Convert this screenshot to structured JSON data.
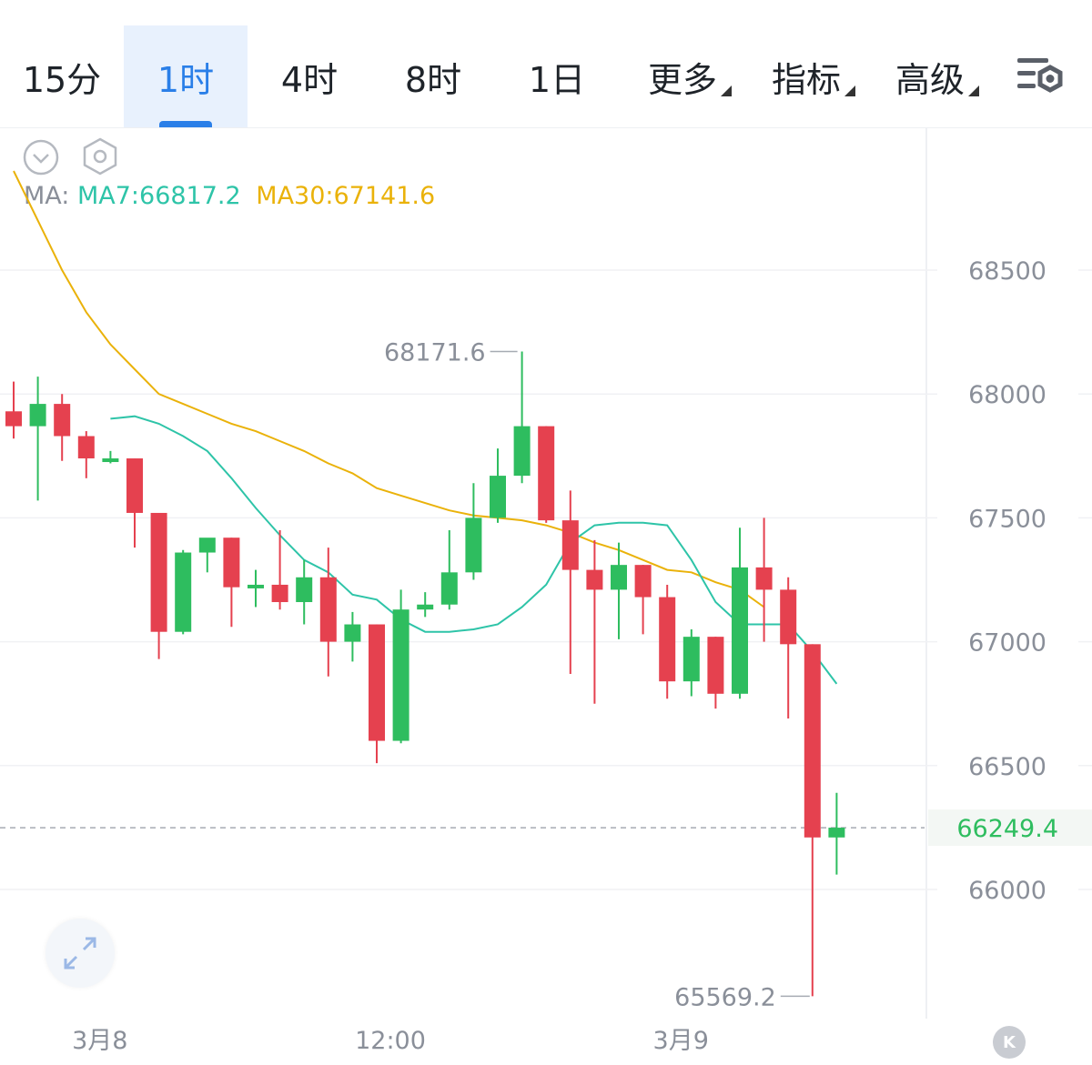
{
  "tabs": [
    {
      "label": "15分",
      "active": false,
      "dropdown": false
    },
    {
      "label": "1时",
      "active": true,
      "dropdown": false
    },
    {
      "label": "4时",
      "active": false,
      "dropdown": false
    },
    {
      "label": "8时",
      "active": false,
      "dropdown": false
    },
    {
      "label": "1日",
      "active": false,
      "dropdown": false
    },
    {
      "label": "更多",
      "active": false,
      "dropdown": true
    },
    {
      "label": "指标",
      "active": false,
      "dropdown": true
    },
    {
      "label": "高级",
      "active": false,
      "dropdown": true
    }
  ],
  "indicator": {
    "label": "MA:",
    "ma7": "MA7:66817.2",
    "ma30": "MA30:67141.6"
  },
  "colors": {
    "up": "#2ebd5f",
    "down": "#e5414f",
    "ma7": "#2ec4a8",
    "ma30": "#eab20a",
    "accent": "#2a7fe8"
  },
  "chart_data": {
    "type": "candlestick",
    "interval": "1时",
    "y_ticks": [
      "68500",
      "68000",
      "67500",
      "67000",
      "66500",
      "66000"
    ],
    "y_tick_values": [
      68500,
      68000,
      67500,
      67000,
      66500,
      66000
    ],
    "x_labels": [
      {
        "label": "3月8",
        "index": 3
      },
      {
        "label": "12:00",
        "index": 15
      },
      {
        "label": "3月9",
        "index": 27
      }
    ],
    "last_price": "66249.4",
    "last_price_value": 66249.4,
    "high_label": "68171.6",
    "high_value": 68171.6,
    "high_index": 21,
    "low_label": "65569.2",
    "low_value": 65569.2,
    "low_index": 33,
    "candles": [
      {
        "o": 67930,
        "h": 68050,
        "c": 67870,
        "l": 67820
      },
      {
        "o": 67870,
        "h": 68070,
        "c": 67960,
        "l": 67570
      },
      {
        "o": 67960,
        "h": 68000,
        "c": 67830,
        "l": 67730
      },
      {
        "o": 67830,
        "h": 67850,
        "c": 67740,
        "l": 67660
      },
      {
        "o": 67740,
        "h": 67770,
        "c": 67740,
        "l": 67720
      },
      {
        "o": 67740,
        "h": 67740,
        "c": 67520,
        "l": 67380
      },
      {
        "o": 67520,
        "h": 67520,
        "c": 67040,
        "l": 66930
      },
      {
        "o": 67040,
        "h": 67370,
        "c": 67360,
        "l": 67030
      },
      {
        "o": 67360,
        "h": 67410,
        "c": 67420,
        "l": 67280
      },
      {
        "o": 67420,
        "h": 67420,
        "c": 67220,
        "l": 67060
      },
      {
        "o": 67220,
        "h": 67290,
        "c": 67230,
        "l": 67140
      },
      {
        "o": 67230,
        "h": 67450,
        "c": 67160,
        "l": 67130
      },
      {
        "o": 67160,
        "h": 67330,
        "c": 67260,
        "l": 67070
      },
      {
        "o": 67260,
        "h": 67380,
        "c": 67000,
        "l": 66860
      },
      {
        "o": 67000,
        "h": 67120,
        "c": 67070,
        "l": 66920
      },
      {
        "o": 67070,
        "h": 67070,
        "c": 66600,
        "l": 66510
      },
      {
        "o": 66600,
        "h": 67210,
        "c": 67130,
        "l": 66590
      },
      {
        "o": 67130,
        "h": 67200,
        "c": 67150,
        "l": 67100
      },
      {
        "o": 67150,
        "h": 67450,
        "c": 67280,
        "l": 67130
      },
      {
        "o": 67280,
        "h": 67640,
        "c": 67500,
        "l": 67250
      },
      {
        "o": 67500,
        "h": 67780,
        "c": 67670,
        "l": 67480
      },
      {
        "o": 67670,
        "h": 68171.6,
        "c": 67870,
        "l": 67640
      },
      {
        "o": 67870,
        "h": 67870,
        "c": 67490,
        "l": 67480
      },
      {
        "o": 67490,
        "h": 67610,
        "c": 67290,
        "l": 66870
      },
      {
        "o": 67290,
        "h": 67410,
        "c": 67210,
        "l": 66750
      },
      {
        "o": 67210,
        "h": 67400,
        "c": 67310,
        "l": 67010
      },
      {
        "o": 67310,
        "h": 67310,
        "c": 67180,
        "l": 67030
      },
      {
        "o": 67180,
        "h": 67230,
        "c": 66840,
        "l": 66770
      },
      {
        "o": 66840,
        "h": 67050,
        "c": 67020,
        "l": 66780
      },
      {
        "o": 67020,
        "h": 67020,
        "c": 66790,
        "l": 66730
      },
      {
        "o": 66790,
        "h": 67460,
        "c": 67300,
        "l": 66770
      },
      {
        "o": 67300,
        "h": 67500,
        "c": 67210,
        "l": 67000
      },
      {
        "o": 67210,
        "h": 67260,
        "c": 66990,
        "l": 66690
      },
      {
        "o": 66990,
        "h": 66990,
        "c": 66210,
        "l": 65569.2
      },
      {
        "o": 66210,
        "h": 66390,
        "c": 66249.4,
        "l": 66060
      }
    ],
    "ma7": [
      67900,
      67910,
      67880,
      67830,
      67770,
      67660,
      67540,
      67430,
      67330,
      67280,
      67190,
      67170,
      67090,
      67040,
      67040,
      67050,
      67070,
      67140,
      67230,
      67400,
      67470,
      67480,
      67480,
      67470,
      67330,
      67160,
      67070,
      67070,
      67070,
      66960,
      66830
    ],
    "ma7_start_index": 4,
    "ma30": [
      68900,
      68700,
      68500,
      68330,
      68200,
      68100,
      68000,
      67960,
      67920,
      67880,
      67850,
      67810,
      67770,
      67720,
      67680,
      67620,
      67590,
      67560,
      67530,
      67510,
      67500,
      67490,
      67470,
      67440,
      67400,
      67370,
      67330,
      67290,
      67280,
      67240,
      67210,
      67140
    ],
    "ma30_start_index": 3
  }
}
